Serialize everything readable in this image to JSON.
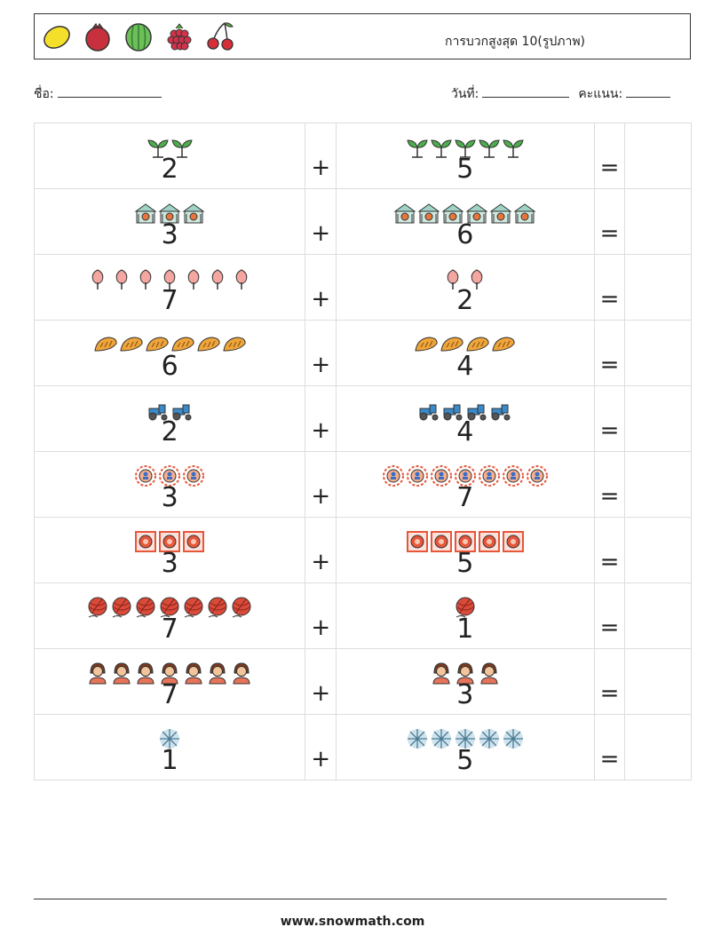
{
  "header": {
    "fruit_icons": [
      "lemon-icon",
      "pomegranate-icon",
      "watermelon-icon",
      "raspberry-icon",
      "cherry-icon"
    ],
    "title": "การบวกสูงสุด 10(รูปภาพ)"
  },
  "fields": {
    "name_label": "ชื่อ:",
    "date_label": "วันที่:",
    "score_label": "คะแนน:"
  },
  "operators": {
    "plus": "+",
    "equals": "="
  },
  "problems": [
    {
      "a": 2,
      "b": 5,
      "icon": "sprout-icon"
    },
    {
      "a": 3,
      "b": 6,
      "icon": "greenhouse-icon"
    },
    {
      "a": 7,
      "b": 2,
      "icon": "cotton-candy-icon"
    },
    {
      "a": 6,
      "b": 4,
      "icon": "bread-icon"
    },
    {
      "a": 2,
      "b": 4,
      "icon": "tractor-icon"
    },
    {
      "a": 3,
      "b": 7,
      "icon": "target-badge-icon"
    },
    {
      "a": 3,
      "b": 5,
      "icon": "framed-target-icon"
    },
    {
      "a": 7,
      "b": 1,
      "icon": "yarn-ball-icon"
    },
    {
      "a": 7,
      "b": 3,
      "icon": "girl-icon"
    },
    {
      "a": 1,
      "b": 5,
      "icon": "snowflake-icon"
    }
  ],
  "footer": {
    "website": "www.snowmath.com"
  }
}
